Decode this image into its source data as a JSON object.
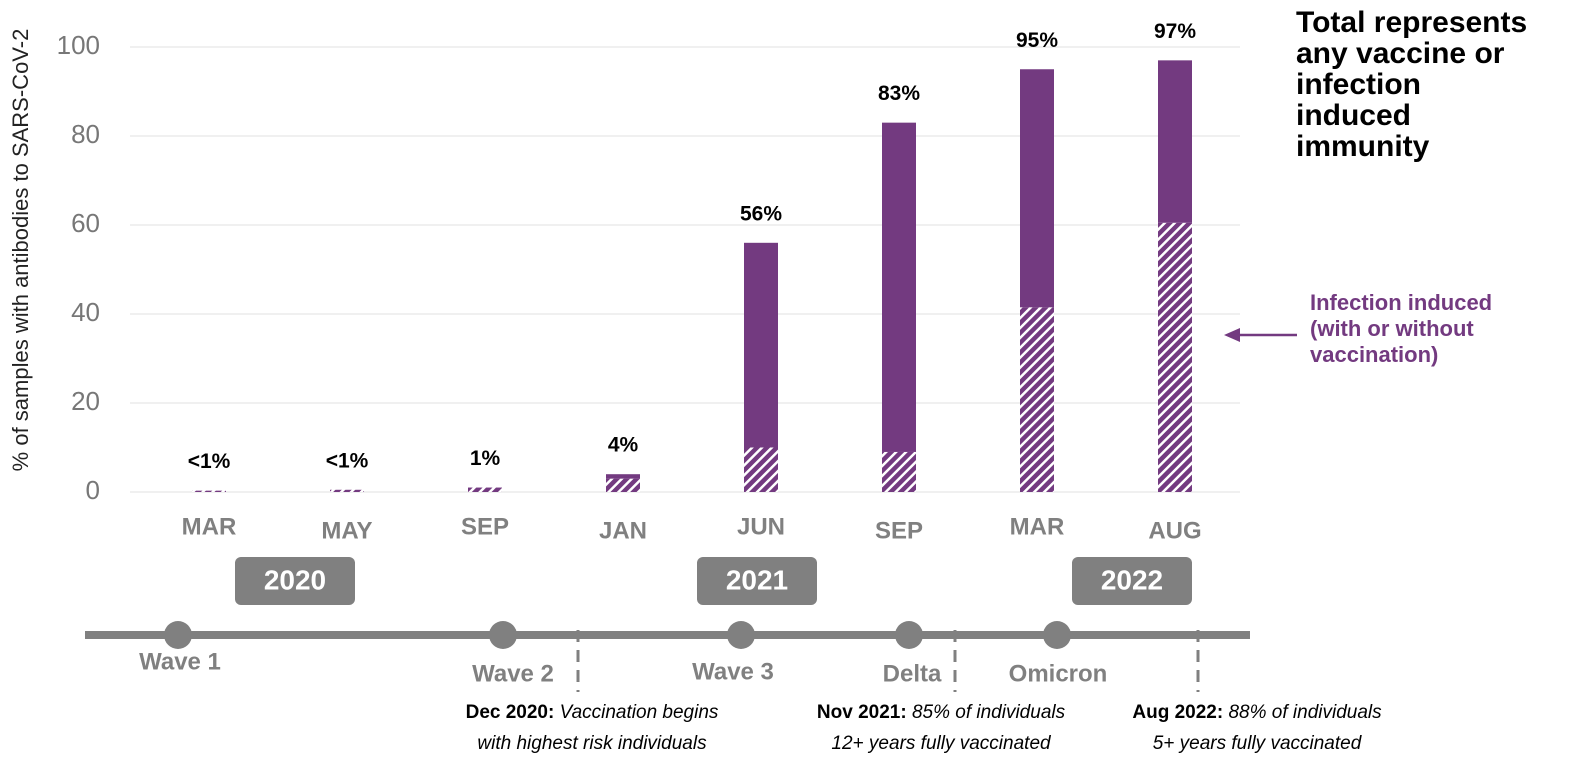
{
  "chart_data": {
    "type": "bar",
    "y_label": "% of samples with antibodies to SARS-CoV-2",
    "categories": [
      "MAR",
      "MAY",
      "SEP",
      "JAN",
      "JUN",
      "SEP",
      "MAR",
      "AUG"
    ],
    "series": [
      {
        "name": "Infection induced (with or without vaccination)",
        "color": "#733a80",
        "pattern": "hatch",
        "values": [
          0.3,
          0.5,
          1,
          3,
          10,
          9,
          41.5,
          60.5
        ]
      },
      {
        "color": "#733a80",
        "values": [
          0,
          0,
          0,
          1,
          46,
          74,
          53.5,
          36.5
        ]
      }
    ],
    "totals": {
      "values": [
        0.3,
        0.5,
        1,
        4,
        56,
        83,
        95,
        97
      ],
      "value_labels": [
        "<1%",
        "<1%",
        "1%",
        "4%",
        "56%",
        "83%",
        "95%",
        "97%"
      ]
    },
    "ylim": [
      0,
      100
    ],
    "yticks": [
      0,
      20,
      40,
      60,
      80,
      100
    ],
    "grid": true,
    "total_note": [
      "Total represents",
      "any vaccine or",
      "infection",
      "induced",
      "immunity"
    ],
    "legend_lines": [
      "Infection induced",
      "(with or without",
      "vaccination)"
    ],
    "timeline": {
      "years": [
        "2020",
        "2021",
        "2022"
      ],
      "events": [
        "Wave 1",
        "Wave 2",
        "Wave 3",
        "Delta",
        "Omicron"
      ],
      "notes": [
        {
          "bold": "Dec 2020:",
          "lines": [
            "Vaccination begins",
            "with highest risk individuals"
          ]
        },
        {
          "bold": "Nov 2021:",
          "lines": [
            "85% of individuals",
            "12+ years fully vaccinated"
          ]
        },
        {
          "bold": "Aug 2022:",
          "lines": [
            "88% of individuals",
            "5+ years fully vaccinated"
          ]
        }
      ]
    }
  }
}
